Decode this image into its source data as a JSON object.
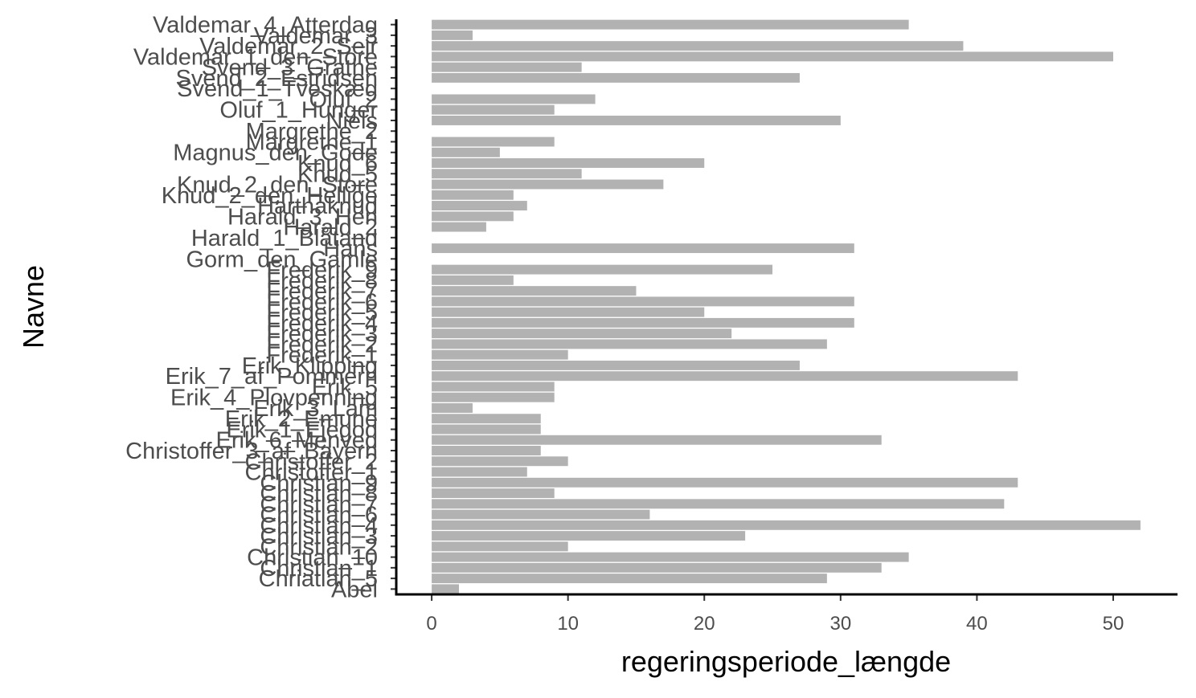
{
  "chart_data": {
    "type": "bar",
    "orientation": "horizontal",
    "title": "",
    "xlabel": "regeringsperiode_længde",
    "ylabel": "Navne",
    "xlim": [
      -2.6,
      54.6
    ],
    "xticks": [
      0,
      10,
      20,
      30,
      40,
      50
    ],
    "grid": false,
    "bar_color": "#b2b2b2",
    "categories": [
      "Valdemar_4_Atterdag",
      "Valdemar_3",
      "Valdemar_2_Sejr",
      "Valdemar_1_den_Store",
      "Svend_3_Grathe",
      "Svend_2_Estridsen",
      "Svend_1_Tveskæg",
      "Oluf_2",
      "Oluf_1_Hunger",
      "Niels",
      "Margrethe_2",
      "Margrethe_1",
      "Magnus_den_Gode",
      "Knud_6",
      "Knud_5",
      "Knud_2_den_Store",
      "Knud_2_den_Hellige",
      "Harthaknud",
      "Harald_3_Hen",
      "Harald_2",
      "Harald_1_Blåtand",
      "Hans",
      "Gorm_den_Gamle",
      "Frederik_9",
      "Frederik_8",
      "Frederik_7",
      "Frederik_6",
      "Frederik_5",
      "Frederik_4",
      "Frederik_3",
      "Frederik_2",
      "Frederik_1",
      "Erik_Klipping",
      "Erik_7_af_Pommern",
      "Erik_5",
      "Erik_4_Plovpenning",
      "Erik_3_Lam",
      "Erik_2_Emune",
      "Erik_1_Ejegod",
      "Erik_6_Menved",
      "Christoffer_3_af_Bayern",
      "Christoffer_2",
      "Christoffer_1",
      "Christian_9",
      "Christian_8",
      "Christian_7",
      "Christian_6",
      "Christian_4",
      "Christian_3",
      "Christian_2",
      "Christian_10",
      "Christian_1",
      "Chriatian_5",
      "Abel"
    ],
    "values": [
      35,
      3,
      39,
      50,
      11,
      27,
      0,
      12,
      9,
      30,
      0,
      9,
      5,
      20,
      11,
      17,
      6,
      7,
      6,
      4,
      0,
      31,
      0,
      25,
      6,
      15,
      31,
      20,
      31,
      22,
      29,
      10,
      27,
      43,
      9,
      9,
      3,
      8,
      8,
      33,
      8,
      10,
      7,
      43,
      9,
      42,
      16,
      52,
      23,
      10,
      35,
      33,
      29,
      2
    ]
  }
}
